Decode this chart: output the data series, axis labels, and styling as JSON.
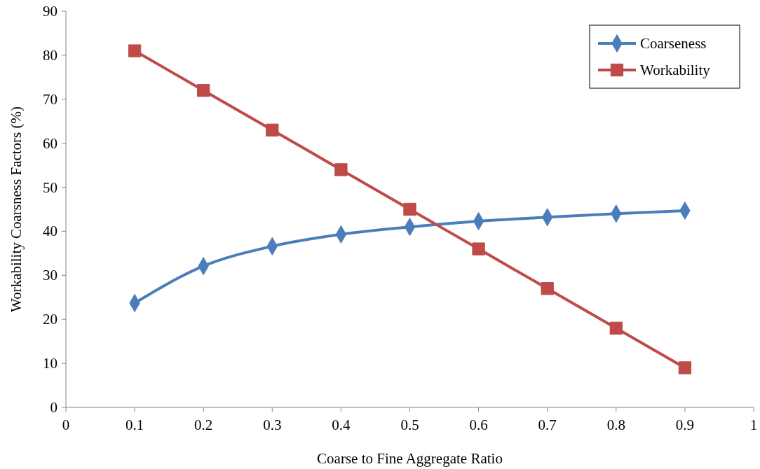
{
  "chart_data": {
    "type": "line",
    "xlabel": "Coarse to Fine Aggregate Ratio",
    "ylabel": "Workability Coarsness Factors (%)",
    "x": [
      0.1,
      0.2,
      0.3,
      0.4,
      0.5,
      0.6,
      0.7,
      0.8,
      0.9
    ],
    "series": [
      {
        "name": "Coarseness",
        "color": "#4a7ebb",
        "marker": "diamond",
        "values": [
          23.7,
          32.1,
          36.6,
          39.3,
          41.0,
          42.3,
          43.2,
          44.0,
          44.7
        ]
      },
      {
        "name": "Workability",
        "color": "#be4b48",
        "marker": "square",
        "values": [
          81,
          72,
          63,
          54,
          45,
          36,
          27,
          18,
          9
        ]
      }
    ],
    "xlim": [
      0,
      1
    ],
    "xticks": [
      0,
      0.1,
      0.2,
      0.3,
      0.4,
      0.5,
      0.6,
      0.7,
      0.8,
      0.9,
      1
    ],
    "ylim": [
      0,
      90
    ],
    "yticks": [
      0,
      10,
      20,
      30,
      40,
      50,
      60,
      70,
      80,
      90
    ],
    "grid": false,
    "legend": "top right",
    "line_style": "solid"
  }
}
